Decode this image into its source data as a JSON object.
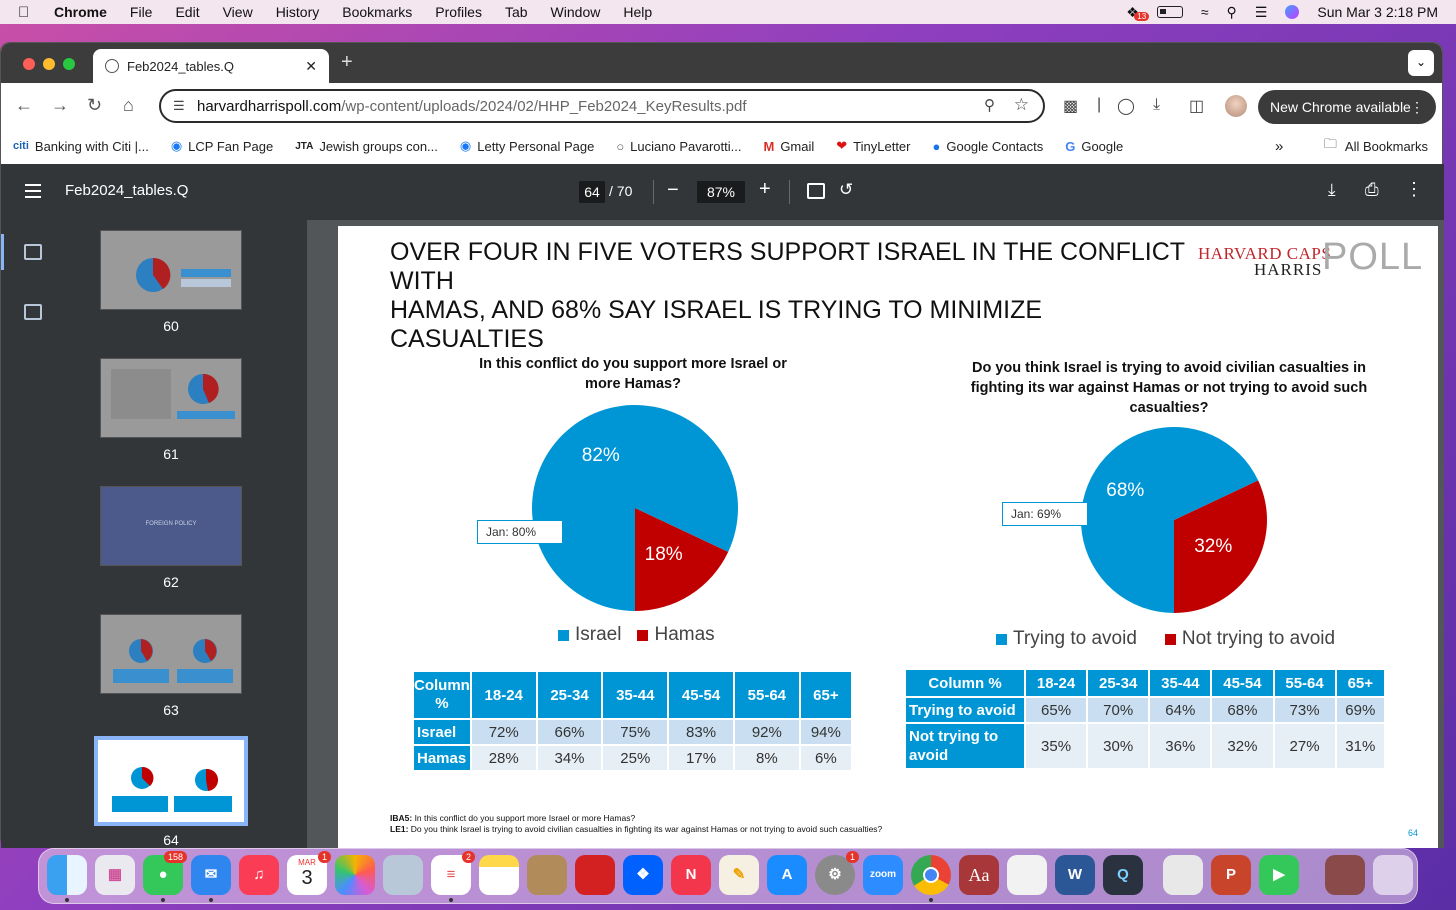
{
  "menubar": {
    "items": [
      "Chrome",
      "File",
      "Edit",
      "View",
      "History",
      "Bookmarks",
      "Profiles",
      "Tab",
      "Window",
      "Help"
    ],
    "notif_count": "13",
    "datetime": "Sun Mar 3  2:18 PM"
  },
  "browser": {
    "tab_title": "Feb2024_tables.Q",
    "url_host": "harvardharrispoll.com",
    "url_path": "/wp-content/uploads/2024/02/HHP_Feb2024_KeyResults.pdf",
    "new_chrome": "New Chrome available",
    "bookmarks": [
      "Banking with Citi |...",
      "LCP Fan Page",
      "Jewish groups con...",
      "Letty Personal Page",
      "Luciano Pavarotti...",
      "Gmail",
      "TinyLetter",
      "Google Contacts",
      "Google"
    ],
    "all_bookmarks": "All Bookmarks"
  },
  "pdf": {
    "title": "Feb2024_tables.Q",
    "page": "64",
    "total": "/ 70",
    "zoom": "87%",
    "thumbnails": [
      {
        "num": "60"
      },
      {
        "num": "61"
      },
      {
        "num": "62",
        "text": "FOREIGN POLICY"
      },
      {
        "num": "63"
      },
      {
        "num": "64"
      }
    ]
  },
  "slide": {
    "title_line1": "OVER FOUR IN FIVE VOTERS SUPPORT ISRAEL IN THE CONFLICT WITH",
    "title_line2": "HAMAS, AND 68% SAY ISRAEL IS TRYING TO MINIMIZE CASUALTIES",
    "logo_top": "HARVARD CAPS",
    "logo_bottom": "HARRIS",
    "logo_poll": "POLL",
    "left": {
      "question": "In this conflict do you support more Israel or more Hamas?",
      "jan": "Jan: 80%",
      "legend": [
        "Israel",
        "Hamas"
      ],
      "table": {
        "header": [
          "Column %",
          "18-24",
          "25-34",
          "35-44",
          "45-54",
          "55-64",
          "65+"
        ],
        "rows": [
          [
            "Israel",
            "72%",
            "66%",
            "75%",
            "83%",
            "92%",
            "94%"
          ],
          [
            "Hamas",
            "28%",
            "34%",
            "25%",
            "17%",
            "8%",
            "6%"
          ]
        ]
      }
    },
    "right": {
      "question": "Do you think Israel is trying to avoid civilian casualties in fighting its war against Hamas or not trying to avoid such casualties?",
      "jan": "Jan: 69%",
      "legend": [
        "Trying to avoid",
        "Not trying to avoid"
      ],
      "table": {
        "header": [
          "Column %",
          "18-24",
          "25-34",
          "35-44",
          "45-54",
          "55-64",
          "65+"
        ],
        "rows": [
          [
            "Trying to avoid",
            "65%",
            "70%",
            "64%",
            "68%",
            "73%",
            "69%"
          ],
          [
            "Not trying to avoid",
            "35%",
            "30%",
            "36%",
            "32%",
            "27%",
            "31%"
          ]
        ]
      }
    },
    "footnote1_label": "IBA5:",
    "footnote1": " In this conflict do you support more Israel or more Hamas?",
    "footnote2_label": "LE1:",
    "footnote2": " Do you think Israel is trying to avoid civilian casualties in fighting its war against Hamas or not trying to avoid such casualties?",
    "page_number": "64"
  },
  "chart_data": [
    {
      "type": "pie",
      "labels": [
        "Israel",
        "Hamas"
      ],
      "values": [
        82,
        18
      ],
      "colors": [
        "#0096d6",
        "#c00000"
      ],
      "annotation": "Jan: 80%"
    },
    {
      "type": "pie",
      "labels": [
        "Trying to avoid",
        "Not trying to avoid"
      ],
      "values": [
        68,
        32
      ],
      "colors": [
        "#0096d6",
        "#c00000"
      ],
      "annotation": "Jan: 69%"
    }
  ],
  "dock": {
    "messages_badge": "158",
    "calendar_month": "MAR",
    "calendar_day": "3",
    "calendar_badge": "1",
    "reminders_badge": "2",
    "settings_badge": "1",
    "zoom_label": "zoom",
    "dictionary_label": "Aa"
  }
}
